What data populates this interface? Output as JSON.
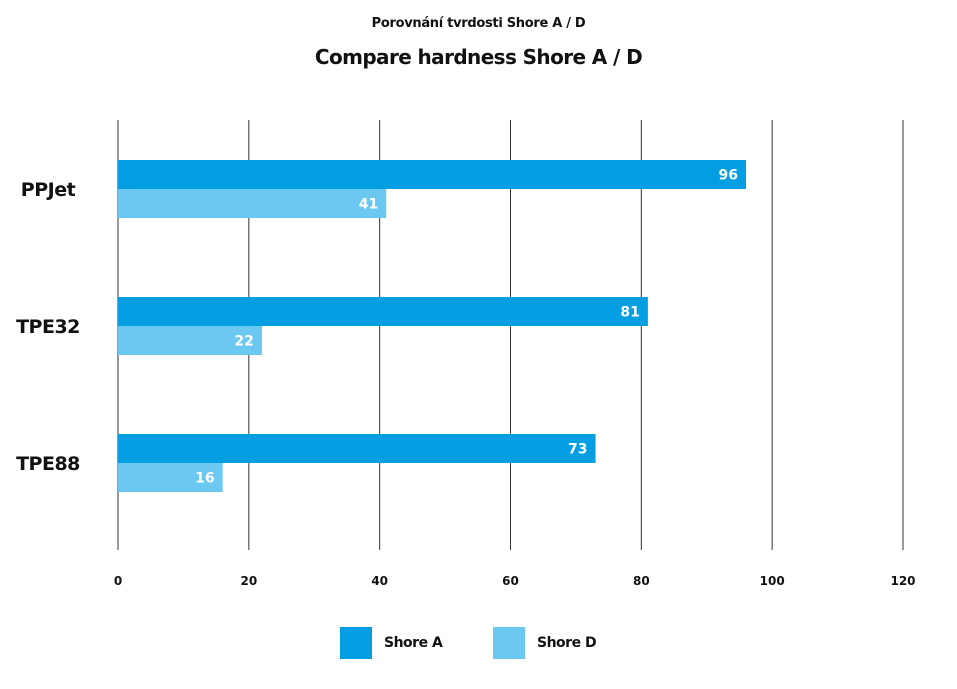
{
  "chart_data": {
    "type": "bar",
    "orientation": "horizontal",
    "subtitle": "Porovnání tvrdosti Shore A / D",
    "title": "Compare hardness Shore A / D",
    "categories": [
      "PPJet",
      "TPE32",
      "TPE88"
    ],
    "series": [
      {
        "name": "Shore A",
        "values": [
          96,
          81,
          73
        ],
        "color": "#049EE2"
      },
      {
        "name": "Shore D",
        "values": [
          41,
          22,
          16
        ],
        "color": "#6BC8F0"
      }
    ],
    "xlim": [
      0,
      120
    ],
    "xticks": [
      0,
      20,
      40,
      60,
      80,
      100,
      120
    ],
    "grid": "vertical",
    "legend_position": "bottom",
    "data_label_color": "#ffffff"
  }
}
